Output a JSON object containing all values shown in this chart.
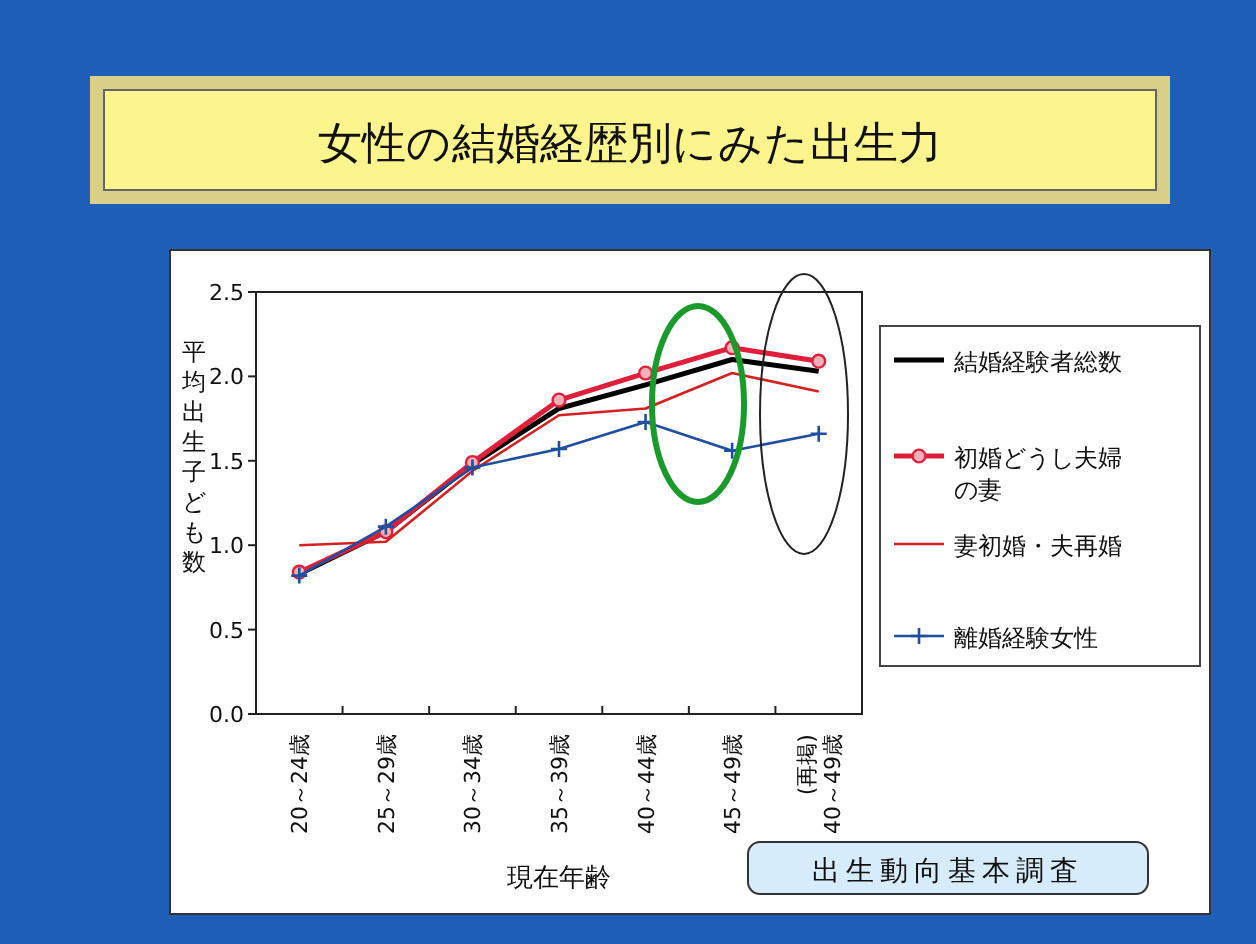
{
  "chart_data": {
    "type": "line",
    "title": "女性の結婚経歴別にみた出生力",
    "xlabel": "現在年齢",
    "ylabel": "平均出生子ども数",
    "categories": [
      "20～24歳",
      "25～29歳",
      "30～34歳",
      "35～39歳",
      "40～44歳",
      "45～49歳",
      "(再掲)\n40～49歳"
    ],
    "series": [
      {
        "name": "結婚経験者総数",
        "color": "#000000",
        "marker": "none",
        "values": [
          0.83,
          1.08,
          1.48,
          1.81,
          1.95,
          2.1,
          2.03
        ]
      },
      {
        "name": "初婚どうし夫婦の妻",
        "color": "#e0203a",
        "marker": "circle",
        "values": [
          0.84,
          1.08,
          1.49,
          1.86,
          2.02,
          2.17,
          2.09
        ]
      },
      {
        "name": "妻初婚・夫再婚",
        "color": "#d42020",
        "marker": "none",
        "values": [
          1.0,
          1.02,
          1.44,
          1.77,
          1.81,
          2.02,
          1.91
        ]
      },
      {
        "name": "離婚経験女性",
        "color": "#1f4fa0",
        "marker": "cross",
        "values": [
          0.82,
          1.11,
          1.46,
          1.57,
          1.73,
          1.56,
          1.66
        ]
      }
    ],
    "ylim": [
      0,
      2.5
    ],
    "yticks": [
      {
        "value": 0,
        "label": "0.0"
      },
      {
        "value": 0.5,
        "label": "0.5"
      },
      {
        "value": 1,
        "label": "1.0"
      },
      {
        "value": 1.5,
        "label": "1.5"
      },
      {
        "value": 2,
        "label": "2.0"
      },
      {
        "value": 2.5,
        "label": "2.5"
      }
    ],
    "grid": false,
    "legend": "right",
    "annotations": [
      "出生動向基本調査"
    ]
  }
}
